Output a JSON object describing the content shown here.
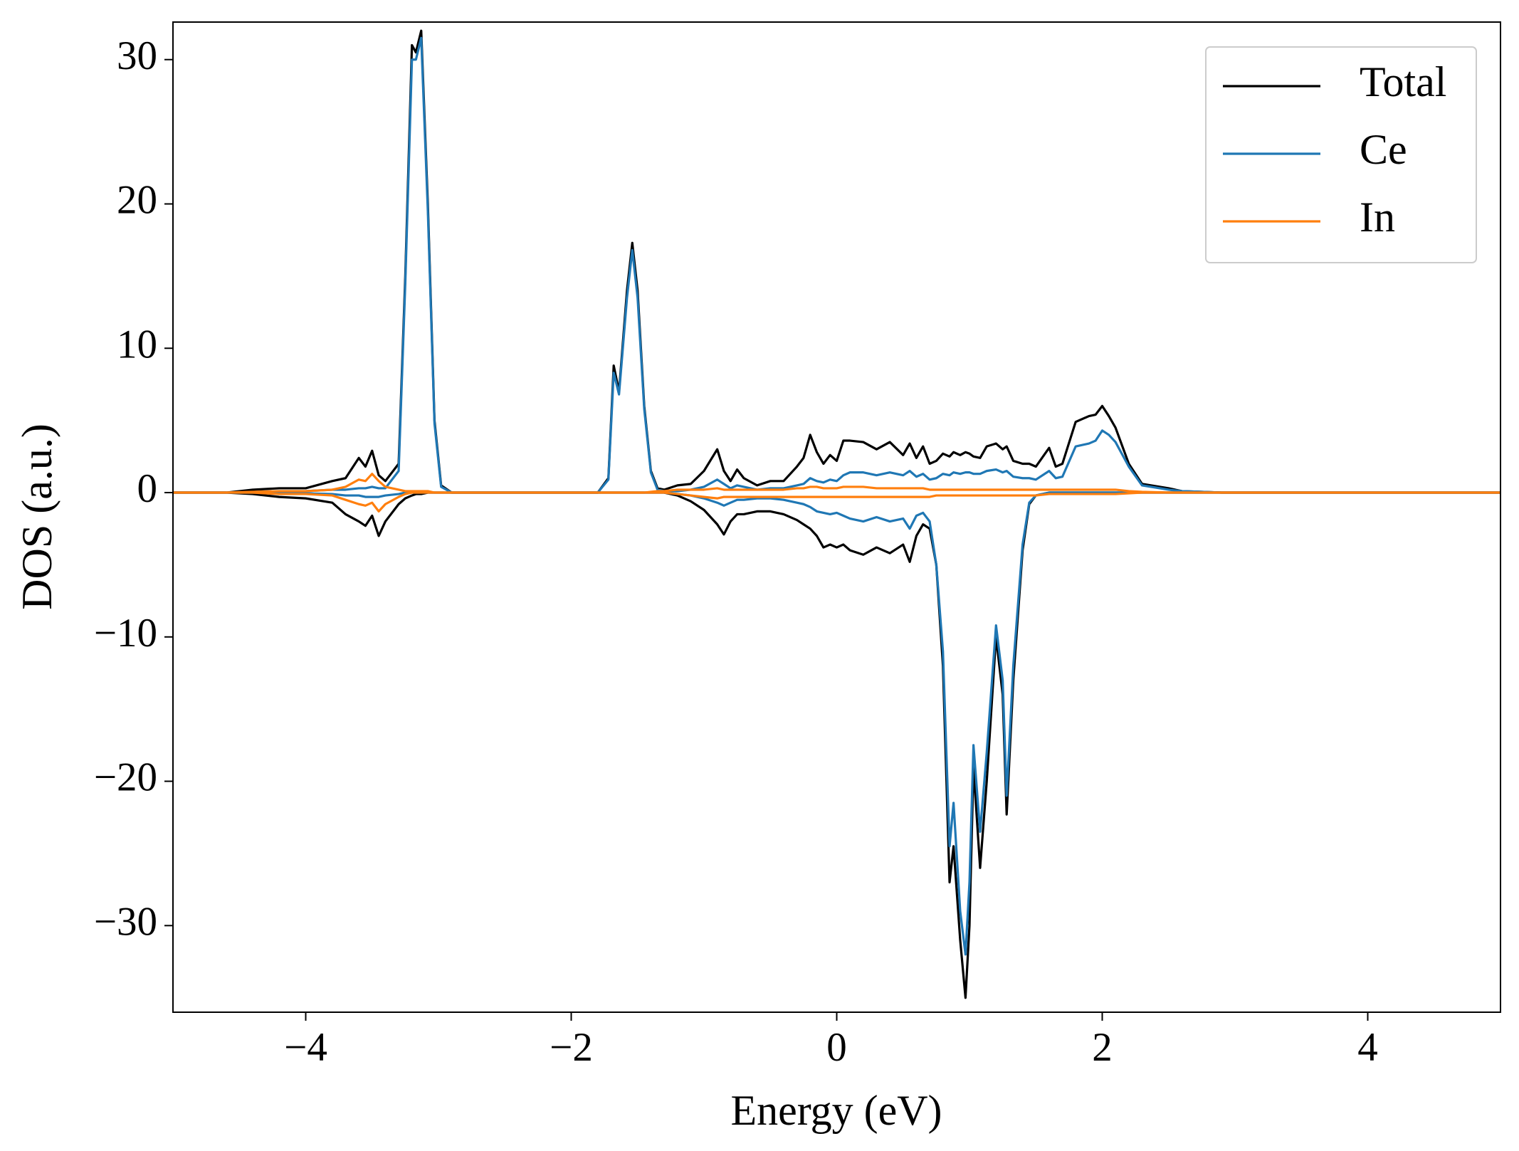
{
  "chart_data": {
    "type": "line",
    "xlabel": "Energy (eV)",
    "ylabel": "DOS (a.u.)",
    "xlim": [
      -5,
      5
    ],
    "ylim": [
      -36,
      32.6
    ],
    "xticks": [
      {
        "value": -4,
        "label": "−4"
      },
      {
        "value": -2,
        "label": "−2"
      },
      0,
      2,
      4
    ],
    "yticks": [
      {
        "value": -30,
        "label": "−30"
      },
      {
        "value": -20,
        "label": "−20"
      },
      {
        "value": -10,
        "label": "−10"
      },
      0,
      10,
      20,
      30
    ],
    "legend": "upper right",
    "x": [
      -5,
      -4.6,
      -4.4,
      -4.2,
      -4.0,
      -3.8,
      -3.7,
      -3.6,
      -3.55,
      -3.5,
      -3.45,
      -3.4,
      -3.3,
      -3.25,
      -3.2,
      -3.17,
      -3.13,
      -3.08,
      -3.03,
      -2.98,
      -2.9,
      -1.8,
      -1.72,
      -1.68,
      -1.64,
      -1.58,
      -1.54,
      -1.5,
      -1.45,
      -1.4,
      -1.35,
      -1.3,
      -1.2,
      -1.1,
      -1.0,
      -0.9,
      -0.85,
      -0.8,
      -0.75,
      -0.7,
      -0.6,
      -0.5,
      -0.4,
      -0.3,
      -0.25,
      -0.2,
      -0.15,
      -0.1,
      -0.05,
      0,
      0.05,
      0.1,
      0.2,
      0.3,
      0.4,
      0.5,
      0.55,
      0.6,
      0.65,
      0.7,
      0.75,
      0.8,
      0.85,
      0.88,
      0.93,
      0.97,
      1.0,
      1.03,
      1.08,
      1.13,
      1.2,
      1.25,
      1.28,
      1.33,
      1.4,
      1.45,
      1.5,
      1.6,
      1.65,
      1.7,
      1.8,
      1.9,
      1.95,
      2.0,
      2.05,
      2.1,
      2.2,
      2.3,
      2.5,
      2.6,
      2.9,
      5
    ],
    "series": [
      {
        "name": "Total",
        "color": "#000000",
        "values": [
          0,
          0,
          0.2,
          0.3,
          0.3,
          0.8,
          1.0,
          2.4,
          1.8,
          2.9,
          1.2,
          0.8,
          2.0,
          15,
          31,
          30.5,
          32,
          20,
          5,
          0.5,
          0,
          0,
          1,
          8.8,
          7,
          14,
          17.3,
          14,
          6,
          1.5,
          0.3,
          0.2,
          0.5,
          0.6,
          1.5,
          3.0,
          1.5,
          0.8,
          1.6,
          1.0,
          0.5,
          0.8,
          0.8,
          1.8,
          2.4,
          4.0,
          2.8,
          2.0,
          2.6,
          2.2,
          3.6,
          3.6,
          3.5,
          3.0,
          3.5,
          2.6,
          3.4,
          2.4,
          3.2,
          2.0,
          2.2,
          2.7,
          2.5,
          2.8,
          2.6,
          2.8,
          2.7,
          2.5,
          2.4,
          3.2,
          3.4,
          3.0,
          3.2,
          2.2,
          2.0,
          2.0,
          1.8,
          3.1,
          1.8,
          2.0,
          4.9,
          5.3,
          5.4,
          6.0,
          5.3,
          4.5,
          2.0,
          0.6,
          0.3,
          0.1,
          0,
          0
        ],
        "values_down": [
          0,
          0,
          -0.1,
          -0.3,
          -0.4,
          -0.7,
          -1.5,
          -2.0,
          -2.3,
          -1.6,
          -3.0,
          -2.0,
          -0.8,
          -0.4,
          -0.2,
          -0.1,
          -0.1,
          0,
          0,
          0,
          0,
          0,
          0,
          0,
          0,
          0,
          0,
          0,
          0,
          0,
          0,
          0,
          -0.2,
          -0.6,
          -1.2,
          -2.2,
          -2.9,
          -2.0,
          -1.5,
          -1.5,
          -1.3,
          -1.3,
          -1.5,
          -1.9,
          -2.2,
          -2.5,
          -3.0,
          -3.8,
          -3.6,
          -3.8,
          -3.6,
          -4.0,
          -4.3,
          -3.8,
          -4.2,
          -3.6,
          -4.8,
          -3.0,
          -2.2,
          -2.5,
          -5,
          -12,
          -27,
          -24.5,
          -31,
          -35,
          -30,
          -19,
          -26,
          -20,
          -10,
          -14,
          -22.3,
          -13,
          -4,
          -0.8,
          -0.2,
          0,
          0,
          0,
          0,
          0,
          0,
          0,
          0,
          0,
          0,
          0,
          0,
          0,
          0,
          0
        ]
      },
      {
        "name": "Ce",
        "color": "#1f77b4",
        "values": [
          0,
          0,
          0,
          0.05,
          0.1,
          0.2,
          0.2,
          0.3,
          0.3,
          0.4,
          0.3,
          0.3,
          1.5,
          14.5,
          30,
          30,
          31.5,
          19.5,
          4.8,
          0.4,
          0,
          0,
          0.9,
          8.3,
          6.8,
          13.5,
          16.8,
          13.5,
          5.8,
          1.4,
          0.2,
          0.1,
          0.1,
          0.2,
          0.4,
          0.9,
          0.6,
          0.3,
          0.5,
          0.4,
          0.2,
          0.3,
          0.3,
          0.5,
          0.6,
          1.0,
          0.8,
          0.7,
          0.9,
          0.8,
          1.2,
          1.4,
          1.4,
          1.2,
          1.4,
          1.2,
          1.5,
          1.1,
          1.3,
          0.9,
          1.0,
          1.3,
          1.2,
          1.4,
          1.3,
          1.4,
          1.4,
          1.3,
          1.3,
          1.5,
          1.6,
          1.4,
          1.5,
          1.1,
          1.0,
          1.0,
          0.9,
          1.5,
          1.0,
          1.1,
          3.2,
          3.4,
          3.6,
          4.3,
          4.0,
          3.5,
          1.8,
          0.5,
          0.2,
          0.1,
          0,
          0
        ],
        "values_down": [
          0,
          0,
          0,
          0,
          -0.05,
          -0.1,
          -0.2,
          -0.2,
          -0.3,
          -0.3,
          -0.3,
          -0.2,
          -0.1,
          0,
          0,
          0,
          0,
          0,
          0,
          0,
          0,
          0,
          0,
          0,
          0,
          0,
          0,
          0,
          0,
          0,
          0,
          0,
          -0.1,
          -0.2,
          -0.4,
          -0.7,
          -0.9,
          -0.7,
          -0.5,
          -0.5,
          -0.4,
          -0.4,
          -0.5,
          -0.7,
          -0.8,
          -1.0,
          -1.3,
          -1.4,
          -1.5,
          -1.4,
          -1.6,
          -1.8,
          -2.0,
          -1.7,
          -2.0,
          -1.8,
          -2.5,
          -1.6,
          -1.4,
          -2.0,
          -5,
          -11,
          -24.5,
          -21.5,
          -29,
          -32,
          -27,
          -17.5,
          -23.5,
          -18,
          -9.2,
          -13,
          -21,
          -12,
          -3.6,
          -0.7,
          -0.2,
          0,
          0,
          0,
          0,
          0,
          0,
          0,
          0,
          0,
          0,
          0,
          0,
          0,
          0,
          0
        ]
      },
      {
        "name": "In",
        "color": "#ff7f0e",
        "values": [
          0,
          0,
          0.05,
          0.1,
          0.1,
          0.2,
          0.4,
          0.9,
          0.8,
          1.3,
          0.8,
          0.4,
          0.2,
          0.1,
          0.1,
          0.1,
          0.1,
          0.1,
          0,
          0,
          0,
          0,
          0,
          0,
          0,
          0,
          0,
          0,
          0,
          0.05,
          0.1,
          0.1,
          0.2,
          0.2,
          0.2,
          0.3,
          0.2,
          0.2,
          0.2,
          0.2,
          0.2,
          0.2,
          0.2,
          0.3,
          0.3,
          0.4,
          0.4,
          0.3,
          0.3,
          0.3,
          0.4,
          0.4,
          0.4,
          0.3,
          0.3,
          0.3,
          0.3,
          0.3,
          0.3,
          0.2,
          0.2,
          0.2,
          0.2,
          0.2,
          0.2,
          0.2,
          0.2,
          0.2,
          0.2,
          0.2,
          0.2,
          0.2,
          0.2,
          0.2,
          0.2,
          0.2,
          0.2,
          0.2,
          0.2,
          0.2,
          0.2,
          0.2,
          0.2,
          0.2,
          0.2,
          0.2,
          0.1,
          0.05,
          0,
          0,
          0,
          0
        ],
        "values_down": [
          0,
          0,
          0,
          -0.1,
          -0.1,
          -0.2,
          -0.5,
          -0.8,
          -0.9,
          -0.7,
          -1.3,
          -0.8,
          -0.3,
          -0.1,
          0,
          0,
          0,
          0,
          0,
          0,
          0,
          0,
          0,
          0,
          0,
          0,
          0,
          0,
          0,
          0,
          0,
          0,
          -0.1,
          -0.2,
          -0.3,
          -0.4,
          -0.3,
          -0.3,
          -0.3,
          -0.3,
          -0.3,
          -0.3,
          -0.3,
          -0.3,
          -0.3,
          -0.3,
          -0.3,
          -0.3,
          -0.3,
          -0.3,
          -0.3,
          -0.3,
          -0.3,
          -0.3,
          -0.3,
          -0.3,
          -0.3,
          -0.3,
          -0.3,
          -0.3,
          -0.2,
          -0.2,
          -0.2,
          -0.2,
          -0.2,
          -0.2,
          -0.2,
          -0.2,
          -0.2,
          -0.2,
          -0.2,
          -0.2,
          -0.2,
          -0.2,
          -0.2,
          -0.2,
          -0.2,
          -0.1,
          -0.1,
          -0.1,
          -0.1,
          -0.1,
          -0.1,
          -0.1,
          -0.1,
          -0.1,
          -0.05,
          0,
          0,
          0,
          0,
          0
        ]
      }
    ]
  }
}
